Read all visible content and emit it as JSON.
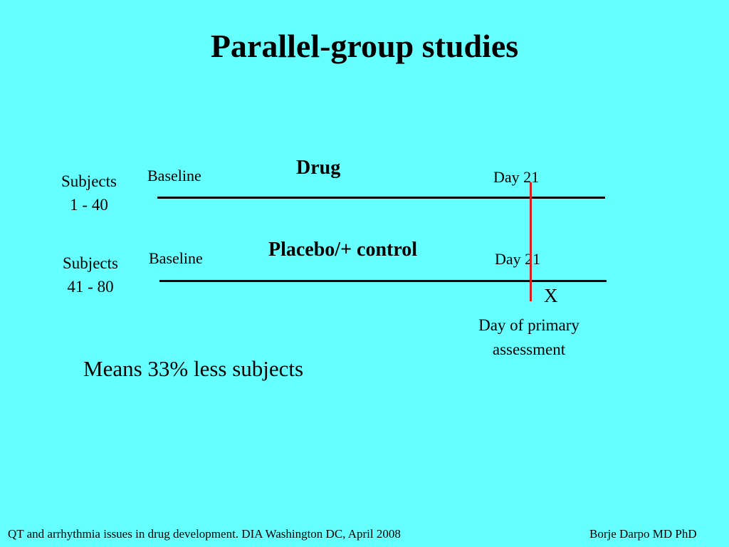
{
  "slide": {
    "title": "Parallel-group studies",
    "groups": [
      {
        "subjects_line1": "Subjects",
        "subjects_line2": "1 - 40",
        "baseline": "Baseline",
        "treatment": "Drug",
        "endpoint": "Day 21"
      },
      {
        "subjects_line1": "Subjects",
        "subjects_line2": "41 - 80",
        "baseline": "Baseline",
        "treatment": "Placebo/+ control",
        "endpoint": "Day 21"
      }
    ],
    "marker": "X",
    "assessment_line1": "Day of primary",
    "assessment_line2": "assessment",
    "note": "Means 33% less subjects",
    "footer_left": "QT and arrhythmia issues in drug development. DIA Washington DC, April 2008",
    "footer_right": "Borje Darpo MD PhD"
  }
}
